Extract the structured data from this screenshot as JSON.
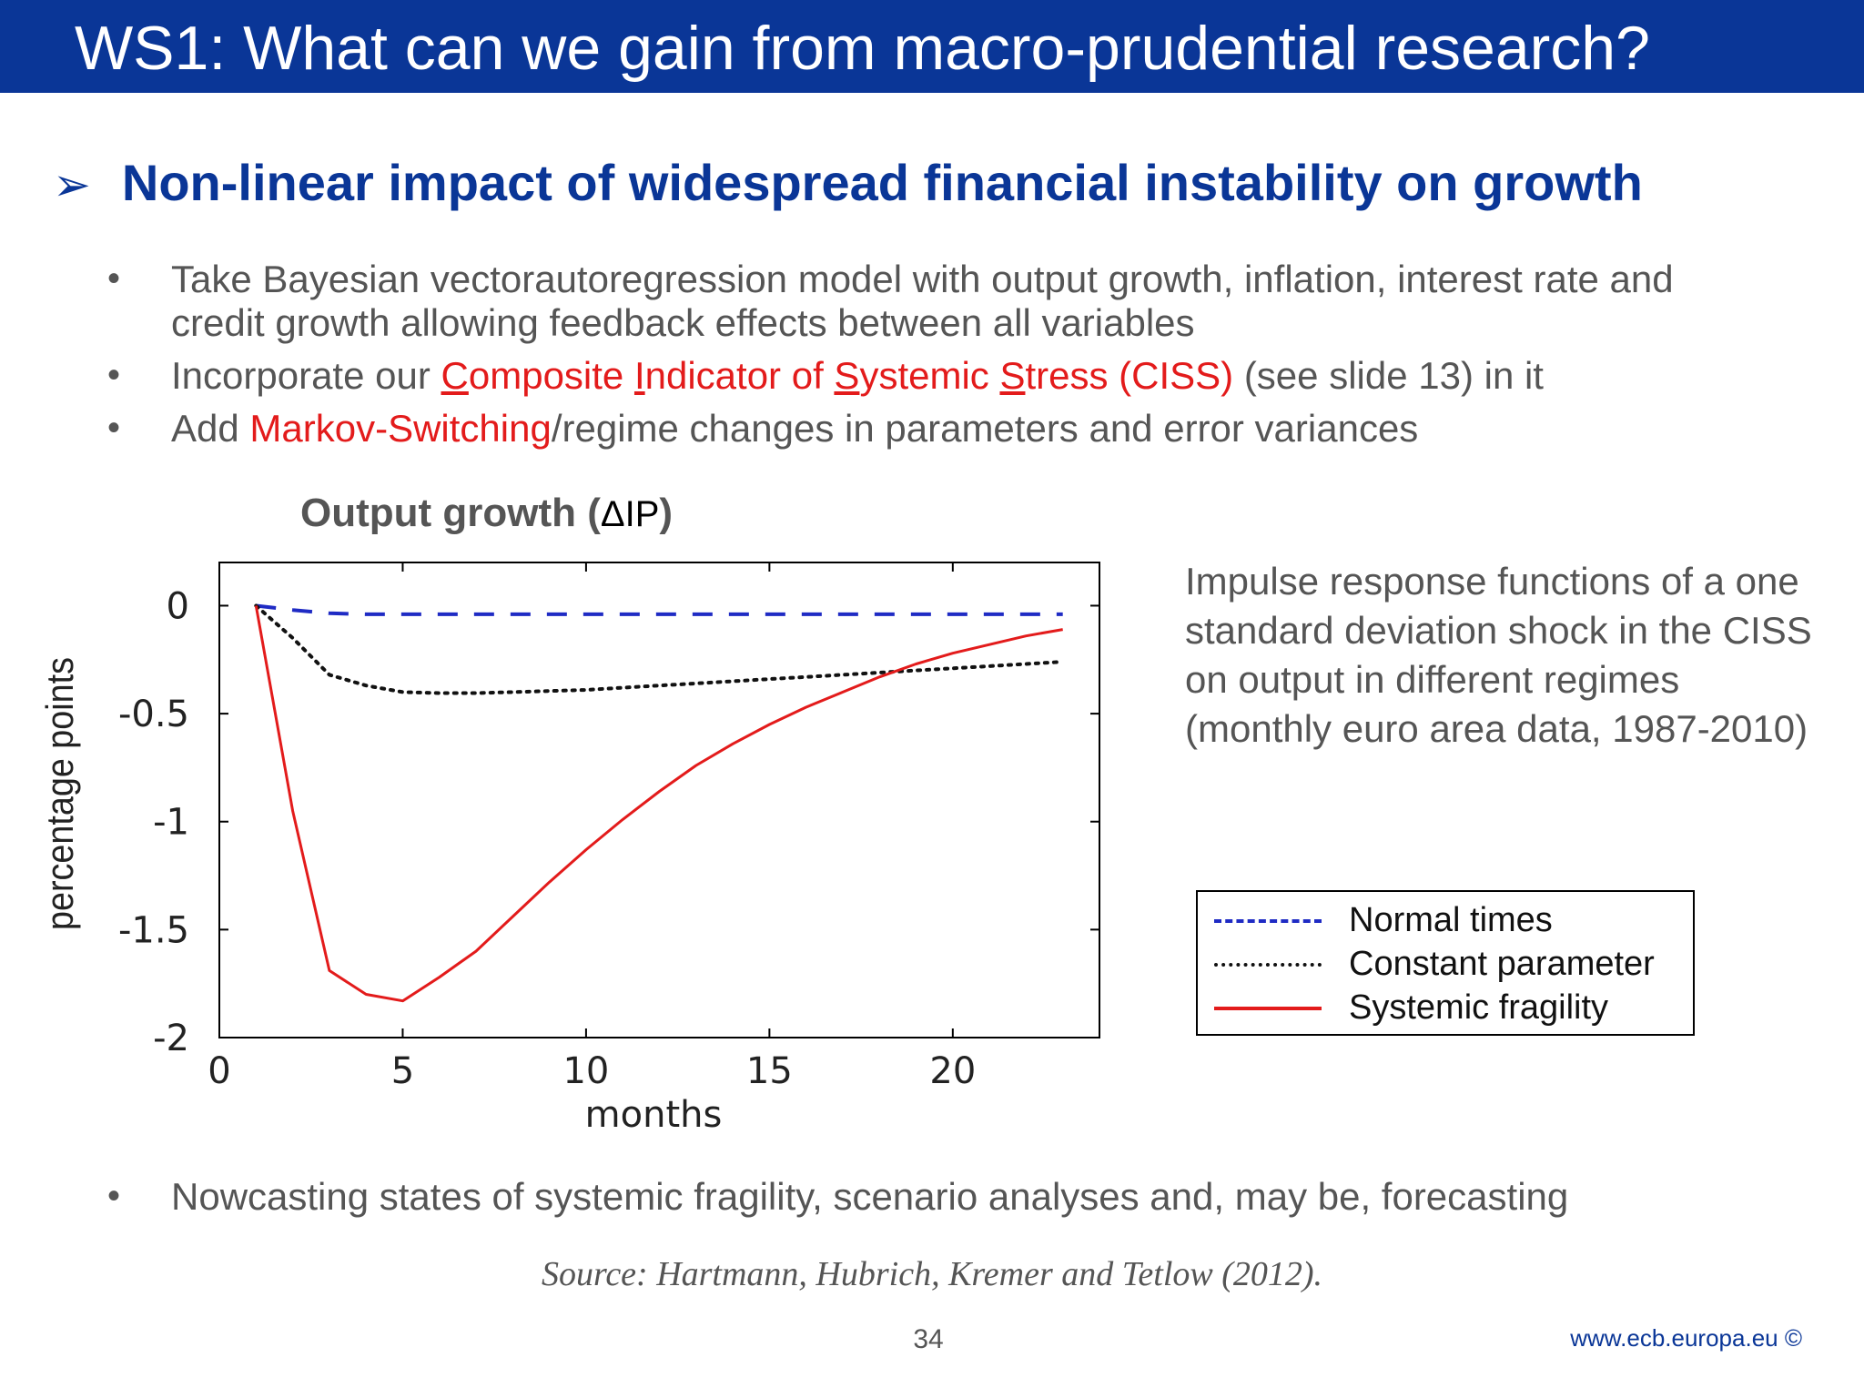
{
  "slide": {
    "title": "WS1: What can we gain from macro-prudential research?",
    "heading_arrow": "➢",
    "heading": "Non-linear impact of widespread financial instability on growth",
    "bullet_glyph": "•",
    "bullets": [
      {
        "line1": "Take Bayesian vectorautoregression model with output growth, inflation, interest rate and",
        "line2": "credit growth allowing feedback effects between all variables"
      },
      {
        "prefix": "Incorporate our ",
        "c_letter": "C",
        "c_rest": "omposite ",
        "i_letter": "I",
        "i_rest": "ndicator of ",
        "s_letter": "S",
        "s_rest": "ystemic ",
        "s2_letter": "S",
        "s2_rest": "tress (CISS)",
        "suffix": " (see slide 13) in it"
      },
      {
        "prefix": "Add ",
        "highlight": "Markov-Switching",
        "suffix": "/regime changes in parameters and error variances"
      },
      {
        "text": "Nowcasting states of systemic fragility, scenario analyses and, may be, forecasting"
      }
    ],
    "chart_title_text": "Output growth (",
    "chart_title_delta": "ΔIP",
    "chart_title_close": ")",
    "description": "Impulse response functions of a one standard deviation shock in the CISS on output in different regimes (monthly euro area data, 1987-2010)",
    "source": "Source: Hartmann, Hubrich, Kremer and Tetlow (2012).",
    "page_number": "34",
    "footer_url": "www.ecb.europa.eu ©"
  },
  "colors": {
    "title_bar": "#0a3697",
    "heading": "#0a3697",
    "body_text": "#555555",
    "highlight_red": "#e31b1b",
    "normal_times": "#1f2bc4",
    "constant_parameter": "#111111",
    "systemic_fragility": "#e31b1b"
  },
  "chart_data": {
    "type": "line",
    "xlabel": "months",
    "ylabel": "percentage points",
    "xlim": [
      0,
      24
    ],
    "ylim": [
      -2,
      0.2
    ],
    "xticks": [
      0,
      5,
      10,
      15,
      20
    ],
    "yticks": [
      0,
      -0.5,
      -1,
      -1.5,
      -2
    ],
    "ytick_labels": [
      "0",
      "-0.5",
      "-1",
      "-1.5",
      "-2"
    ],
    "grid": false,
    "legend_position": "right",
    "series": [
      {
        "name": "Normal times",
        "style": "dashed",
        "color": "#1f2bc4",
        "x": [
          1,
          2,
          3,
          4,
          5,
          6,
          7,
          8,
          9,
          10,
          11,
          12,
          13,
          14,
          15,
          16,
          17,
          18,
          19,
          20,
          21,
          22,
          23
        ],
        "values": [
          0,
          -0.02,
          -0.035,
          -0.04,
          -0.04,
          -0.04,
          -0.04,
          -0.04,
          -0.04,
          -0.04,
          -0.04,
          -0.04,
          -0.04,
          -0.04,
          -0.04,
          -0.04,
          -0.04,
          -0.04,
          -0.04,
          -0.04,
          -0.04,
          -0.04,
          -0.04
        ]
      },
      {
        "name": "Constant parameter",
        "style": "dotted",
        "color": "#111111",
        "x": [
          1,
          2,
          3,
          4,
          5,
          6,
          7,
          8,
          9,
          10,
          11,
          12,
          13,
          14,
          15,
          16,
          17,
          18,
          19,
          20,
          21,
          22,
          23
        ],
        "values": [
          0,
          -0.15,
          -0.32,
          -0.37,
          -0.4,
          -0.405,
          -0.405,
          -0.4,
          -0.395,
          -0.39,
          -0.38,
          -0.37,
          -0.36,
          -0.35,
          -0.34,
          -0.33,
          -0.32,
          -0.31,
          -0.3,
          -0.29,
          -0.28,
          -0.27,
          -0.26
        ]
      },
      {
        "name": "Systemic fragility",
        "style": "solid",
        "color": "#e31b1b",
        "x": [
          1,
          2,
          3,
          4,
          5,
          6,
          7,
          8,
          9,
          10,
          11,
          12,
          13,
          14,
          15,
          16,
          17,
          18,
          19,
          20,
          21,
          22,
          23
        ],
        "values": [
          0,
          -0.95,
          -1.69,
          -1.8,
          -1.83,
          -1.72,
          -1.6,
          -1.44,
          -1.28,
          -1.13,
          -0.99,
          -0.86,
          -0.74,
          -0.64,
          -0.55,
          -0.47,
          -0.4,
          -0.33,
          -0.27,
          -0.22,
          -0.18,
          -0.14,
          -0.11
        ]
      }
    ]
  }
}
